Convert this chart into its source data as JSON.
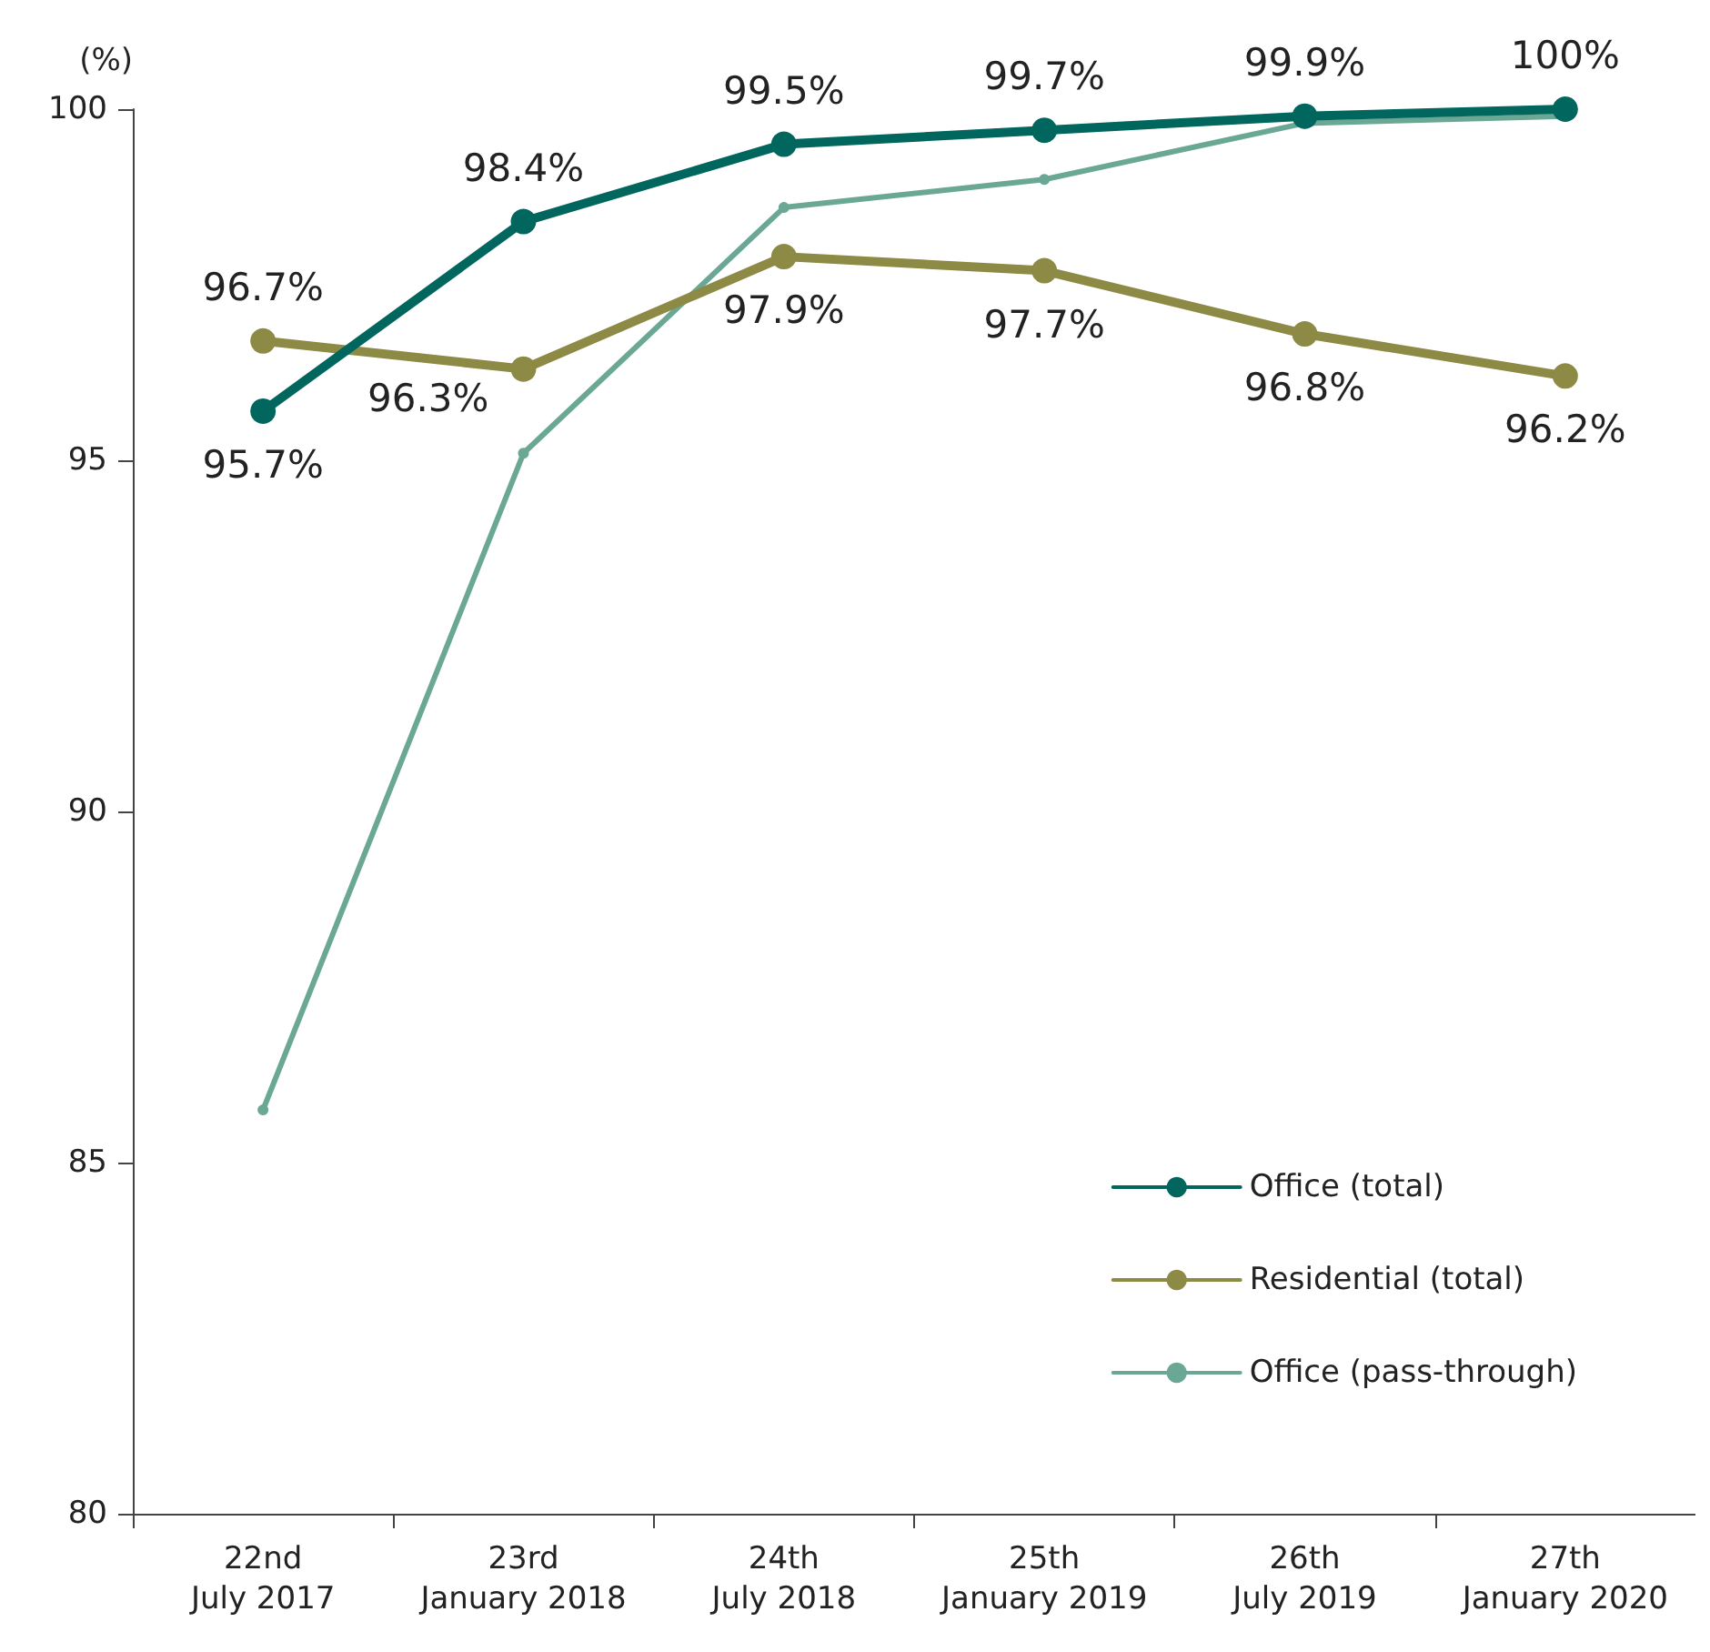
{
  "chart_data": {
    "type": "line",
    "ylabel": "(%)",
    "categories": [
      "22nd\nJuly 2017",
      "23rd\nJanuary 2018",
      "24th\nJuly 2018",
      "25th\nJanuary 2019",
      "26th\nJuly 2019",
      "27th\nJanuary 2020"
    ],
    "ylim": [
      80,
      100
    ],
    "yticks": [
      80,
      85,
      90,
      95,
      100
    ],
    "grid": false,
    "legend": "bottom right",
    "marker": "circle",
    "line_style": "solid",
    "series": [
      {
        "name": "Office (total)",
        "color": "#00665e",
        "values": [
          95.7,
          98.4,
          99.5,
          99.7,
          99.9,
          100
        ],
        "value_labels": [
          "95.7%",
          "98.4%",
          "99.5%",
          "99.7%",
          "99.9%",
          "100%"
        ]
      },
      {
        "name": "Residential (total)",
        "color": "#8c8a45",
        "values": [
          96.7,
          96.3,
          97.9,
          97.7,
          96.8,
          96.2
        ],
        "value_labels": [
          "96.7%",
          "96.3%",
          "97.9%",
          "97.7%",
          "96.8%",
          "96.2%"
        ]
      },
      {
        "name": "Office (pass-through)",
        "color": "#6aa895",
        "values": [
          85.75,
          95.1,
          98.6,
          99.0,
          99.8,
          99.9
        ]
      }
    ]
  }
}
